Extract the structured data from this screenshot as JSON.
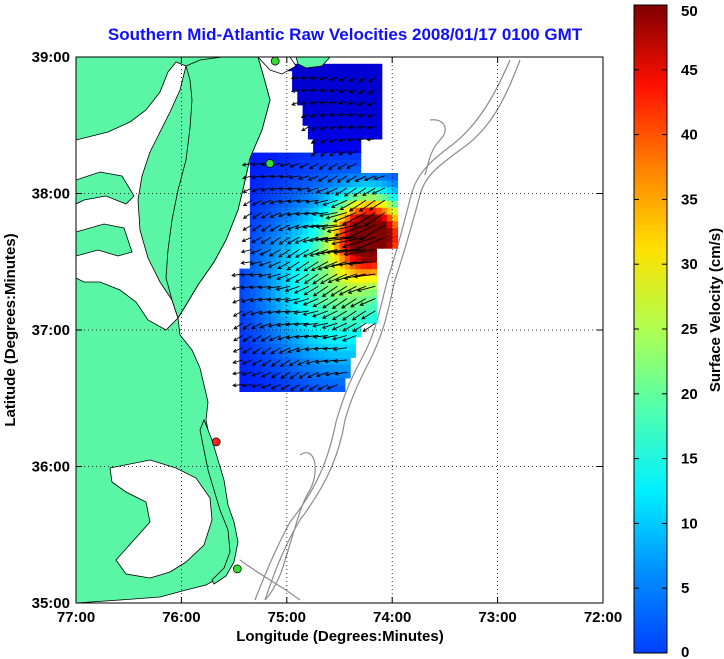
{
  "title": "Southern Mid-Atlantic Raw Velocities 2008/01/17 0100 GMT",
  "x_axis": {
    "label": "Longitude (Degrees:Minutes)",
    "ticks": [
      {
        "value": -77,
        "label": "77:00"
      },
      {
        "value": -76,
        "label": "76:00"
      },
      {
        "value": -75,
        "label": "75:00"
      },
      {
        "value": -74,
        "label": "74:00"
      },
      {
        "value": -73,
        "label": "73:00"
      },
      {
        "value": -72,
        "label": "72:00"
      }
    ],
    "range": [
      -77,
      -72
    ]
  },
  "y_axis": {
    "label": "Latitude (Degrees:Minutes)",
    "ticks": [
      {
        "value": 35,
        "label": "35:00"
      },
      {
        "value": 36,
        "label": "36:00"
      },
      {
        "value": 37,
        "label": "37:00"
      },
      {
        "value": 38,
        "label": "38:00"
      },
      {
        "value": 39,
        "label": "39:00"
      }
    ],
    "range": [
      35,
      39
    ]
  },
  "colorbar": {
    "label": "Surface Velocity (cm/s)",
    "range": [
      0,
      50
    ],
    "ticks": [
      {
        "value": 0,
        "label": "0"
      },
      {
        "value": 5,
        "label": "5"
      },
      {
        "value": 10,
        "label": "10"
      },
      {
        "value": 15,
        "label": "15"
      },
      {
        "value": 20,
        "label": "20"
      },
      {
        "value": 25,
        "label": "25"
      },
      {
        "value": 30,
        "label": "30"
      },
      {
        "value": 35,
        "label": "35"
      },
      {
        "value": 40,
        "label": "40"
      },
      {
        "value": 45,
        "label": "45"
      },
      {
        "value": 50,
        "label": "50"
      }
    ],
    "colormap": "jet"
  },
  "colors": {
    "land": "#5af5a5",
    "ocean": "#ffffff",
    "coastline": "#000000",
    "bathymetry": "#8c8c8c",
    "grid": "#000000",
    "title": "#1010ff",
    "station_green": "#33dd33",
    "station_red": "#ff2020"
  },
  "grid": "dotted",
  "stations": [
    {
      "lon": -75.11,
      "lat": 38.97,
      "color": "green"
    },
    {
      "lon": -75.16,
      "lat": 38.22,
      "color": "green"
    },
    {
      "lon": -75.67,
      "lat": 36.18,
      "color": "red"
    },
    {
      "lon": -75.47,
      "lat": 35.25,
      "color": "green"
    }
  ]
}
